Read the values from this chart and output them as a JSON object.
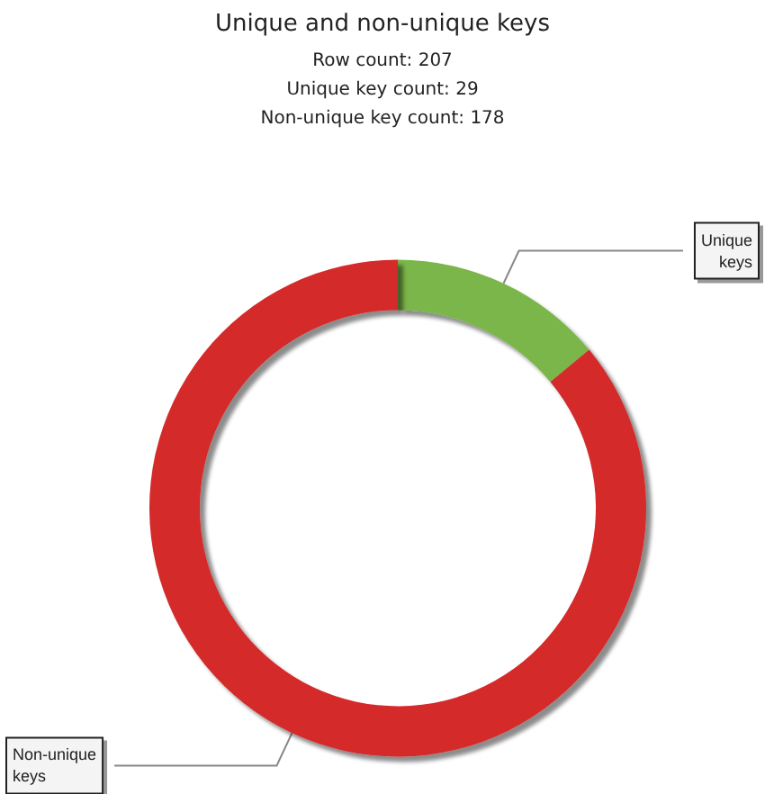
{
  "chart_data": {
    "type": "donut",
    "title": "Unique and non-unique keys",
    "subtitle": "Row count: 207\nUnique key count: 29\nNon-unique key count: 178",
    "categories": [
      "Unique keys",
      "Non-unique keys"
    ],
    "values": [
      14,
      86
    ],
    "colors": [
      "#7ab648",
      "#d42a2a"
    ],
    "legend": false
  }
}
